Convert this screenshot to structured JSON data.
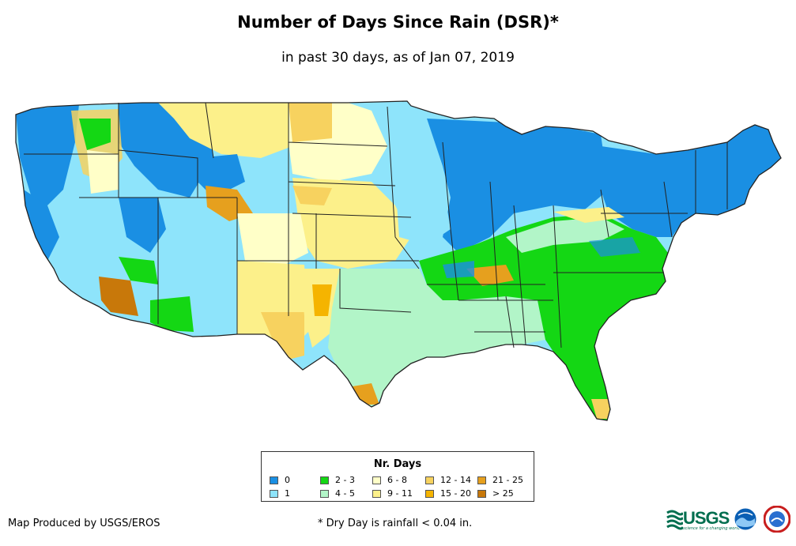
{
  "title": "Number of Days Since Rain (DSR)*",
  "subtitle": "in past 30 days, as of Jan 07, 2019",
  "legend": {
    "title": "Nr. Days",
    "items": [
      {
        "label": "0",
        "color": "#1a8fe3"
      },
      {
        "label": "1",
        "color": "#8ee4fb"
      },
      {
        "label": "2 - 3",
        "color": "#14d714"
      },
      {
        "label": "4 - 5",
        "color": "#b2f5c8"
      },
      {
        "label": "6 - 8",
        "color": "#ffffc8"
      },
      {
        "label": "9 - 11",
        "color": "#fcf08a"
      },
      {
        "label": "12 - 14",
        "color": "#f7d25f"
      },
      {
        "label": "15 - 20",
        "color": "#f5b400"
      },
      {
        "label": "21 - 25",
        "color": "#e6a01e"
      },
      {
        "label": "> 25",
        "color": "#c8780a"
      }
    ]
  },
  "footer": {
    "producer": "Map Produced by USGS/EROS",
    "note": "* Dry Day is rainfall < 0.04 in."
  },
  "logos": {
    "usgs": "USGS",
    "usgs_tagline": "science for a changing world",
    "noaa": "noaa-logo",
    "nws": "nws-logo"
  }
}
